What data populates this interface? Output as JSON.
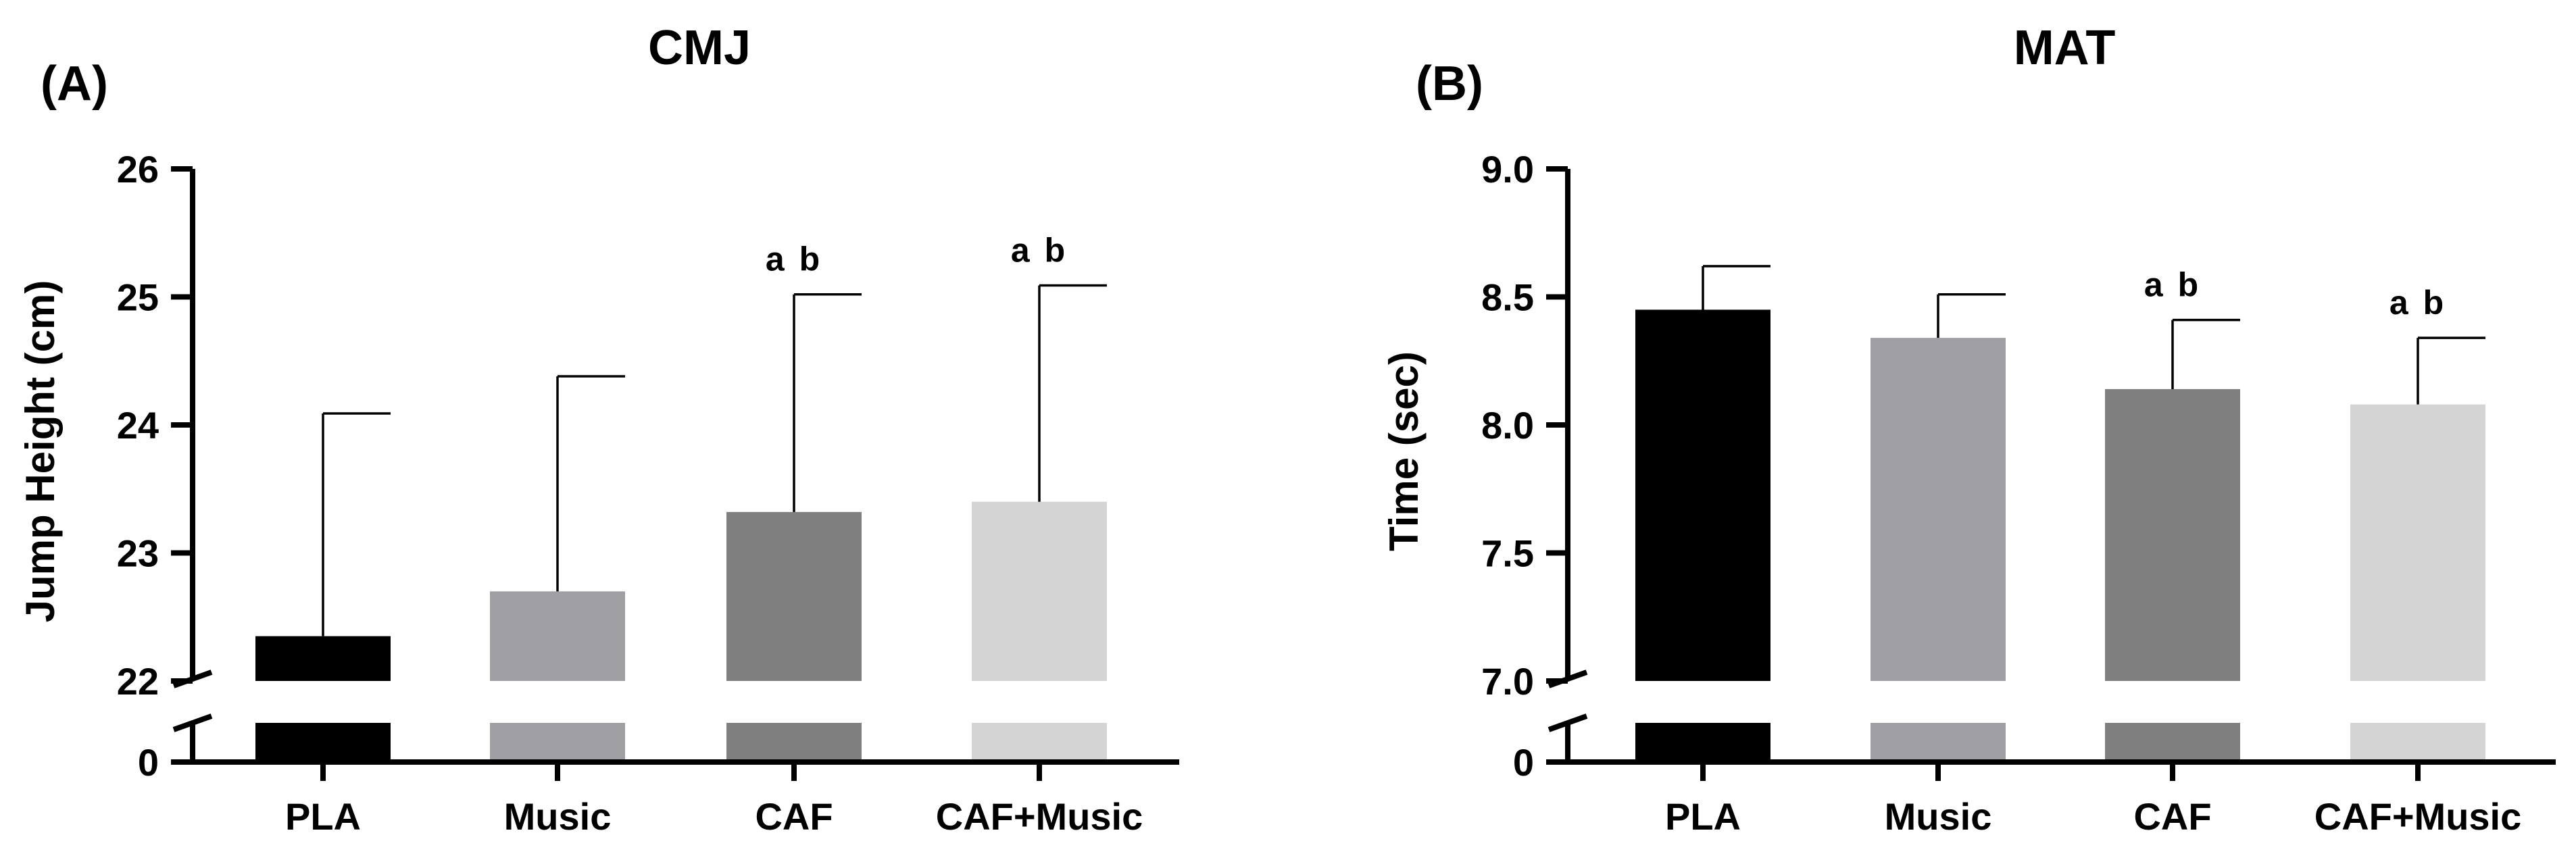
{
  "chart_data": [
    {
      "type": "bar",
      "panel_label": "(A)",
      "title": "CMJ",
      "ylabel": "Jump Height (cm)",
      "xlabel": "",
      "categories": [
        "PLA",
        "Music",
        "CAF",
        "CAF+Music"
      ],
      "values": [
        22.35,
        22.7,
        23.32,
        23.4
      ],
      "error_upper": [
        24.09,
        24.38,
        25.02,
        25.09
      ],
      "annotations": [
        "",
        "",
        "a b",
        "a b"
      ],
      "ylim": [
        22,
        26
      ],
      "yticks": [
        "22",
        "23",
        "24",
        "25",
        "26"
      ],
      "axis_break": true,
      "zero_tick": "0",
      "colors": [
        "#000000",
        "#a0a0a4",
        "#7f7f7f",
        "#d4d4d4"
      ]
    },
    {
      "type": "bar",
      "panel_label": "(B)",
      "title": "MAT",
      "ylabel": "Time (sec)",
      "xlabel": "",
      "categories": [
        "PLA",
        "Music",
        "CAF",
        "CAF+Music"
      ],
      "values": [
        8.45,
        8.34,
        8.14,
        8.08
      ],
      "error_upper": [
        8.62,
        8.51,
        8.41,
        8.34
      ],
      "annotations": [
        "",
        "",
        "a b",
        "a b"
      ],
      "ylim": [
        7.0,
        9.0
      ],
      "yticks": [
        "7.0",
        "7.5",
        "8.0",
        "8.5",
        "9.0"
      ],
      "axis_break": true,
      "zero_tick": "0",
      "colors": [
        "#000000",
        "#a0a0a4",
        "#7f7f7f",
        "#d4d4d4"
      ]
    }
  ]
}
